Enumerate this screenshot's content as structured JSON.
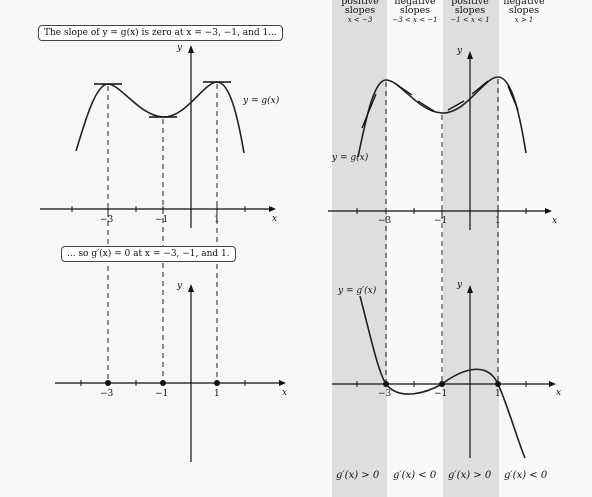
{
  "left": {
    "callout_top": "The slope of y = g(x) is zero at x = −3, −1, and 1...",
    "callout_bottom": "... so g′(x) = 0 at x = −3, −1, and 1.",
    "curve_label": "y = g(x)",
    "axis_y": "y",
    "axis_x": "x",
    "ticks_top": [
      "−3",
      "−1",
      "1"
    ],
    "ticks_bottom": [
      "−3",
      "−1",
      "1"
    ]
  },
  "right": {
    "headers": [
      {
        "title": "positive",
        "sub": "slopes",
        "range": "x < −3"
      },
      {
        "title": "negative",
        "sub": "slopes",
        "range": "−3 < x < −1"
      },
      {
        "title": "positive",
        "sub": "slopes",
        "range": "−1 < x < 1"
      },
      {
        "title": "negative",
        "sub": "slopes",
        "range": "x > 1"
      }
    ],
    "curve_label_top": "y = g(x)",
    "curve_label_bottom": "y = g′(x)",
    "axis_y": "y",
    "axis_x": "x",
    "ticks_top": [
      "−3",
      "−1",
      "1"
    ],
    "ticks_bottom": [
      "−3",
      "−1",
      "1"
    ],
    "footer": [
      "g′(x) > 0",
      "g′(x) < 0",
      "g′(x) > 0",
      "g′(x) < 0"
    ]
  },
  "colors": {
    "ink": "#111111",
    "shade": "#dedede",
    "paper": "#f7f7f5"
  }
}
